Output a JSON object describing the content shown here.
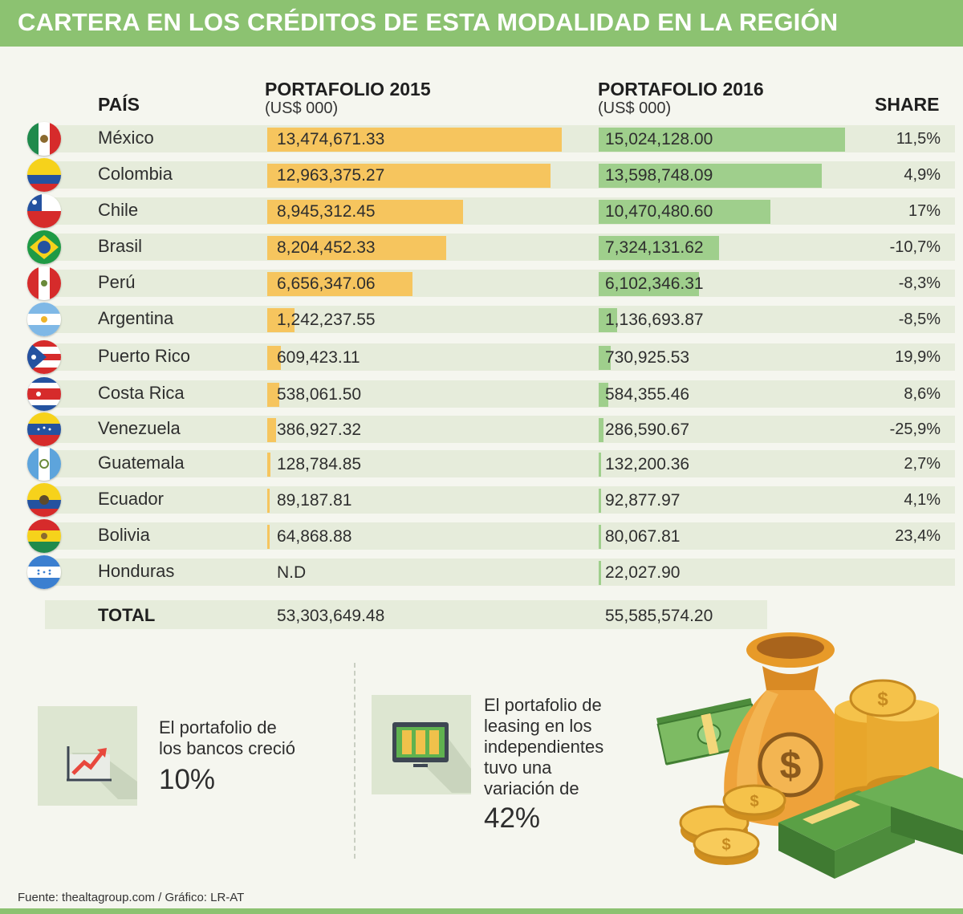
{
  "title": "CARTERA EN LOS CRÉDITOS DE ESTA MODALIDAD EN LA REGIÓN",
  "headers": {
    "pais": "PAÍS",
    "p2015": "PORTAFOLIO 2015",
    "p2015_unit": "(US$ 000)",
    "p2016": "PORTAFOLIO 2016",
    "p2016_unit": "(US$ 000)",
    "share": "SHARE"
  },
  "chart_data": {
    "type": "bar",
    "title": "CARTERA EN LOS CRÉDITOS DE ESTA MODALIDAD EN LA REGIÓN",
    "unit": "US$ 000",
    "categories": [
      "México",
      "Colombia",
      "Chile",
      "Brasil",
      "Perú",
      "Argentina",
      "Puerto Rico",
      "Costa Rica",
      "Venezuela",
      "Guatemala",
      "Ecuador",
      "Bolivia",
      "Honduras"
    ],
    "series": [
      {
        "name": "PORTAFOLIO 2015",
        "values": [
          13474671.33,
          12963375.27,
          8945312.45,
          8204452.33,
          6656347.06,
          1242237.55,
          609423.11,
          538061.5,
          386927.32,
          128784.85,
          89187.81,
          64868.88,
          null
        ],
        "labels": [
          "13,474,671.33",
          "12,963,375.27",
          "8,945,312.45",
          "8,204,452.33",
          "6,656,347.06",
          "1,242,237.55",
          "609,423.11",
          "538,061.50",
          "386,927.32",
          "128,784.85",
          "89,187.81",
          "64,868.88",
          "N.D"
        ]
      },
      {
        "name": "PORTAFOLIO 2016",
        "values": [
          15024128.0,
          13598748.09,
          10470480.6,
          7324131.62,
          6102346.31,
          1136693.87,
          730925.53,
          584355.46,
          286590.67,
          132200.36,
          92877.97,
          80067.81,
          22027.9
        ],
        "labels": [
          "15,024,128.00",
          "13,598,748.09",
          "10,470,480.60",
          "7,324,131.62",
          "6,102,346.31",
          "1,136,693.87",
          "730,925.53",
          "584,355.46",
          "286,590.67",
          "132,200.36",
          "92,877.97",
          "80,067.81",
          "22,027.90"
        ]
      }
    ],
    "share": [
      "11,5%",
      "4,9%",
      "17%",
      "-10,7%",
      "-8,3%",
      "-8,5%",
      "19,9%",
      "8,6%",
      "-25,9%",
      "2,7%",
      "4,1%",
      "23,4%",
      ""
    ],
    "flags": [
      "mexico-flag",
      "colombia-flag",
      "chile-flag",
      "brazil-flag",
      "peru-flag",
      "argentina-flag",
      "puerto-rico-flag",
      "costa-rica-flag",
      "venezuela-flag",
      "guatemala-flag",
      "ecuador-flag",
      "bolivia-flag",
      "honduras-flag"
    ],
    "total": {
      "label": "TOTAL",
      "v2015": "53,303,649.48",
      "v2016": "55,585,574.20"
    }
  },
  "info1": {
    "text": [
      "El portafolio de",
      "los bancos creció"
    ],
    "value": "10%",
    "icon": "growth-chart-icon"
  },
  "info2": {
    "text": [
      "El portafolio de",
      "leasing en los",
      "independientes",
      "tuvo una",
      "variación de"
    ],
    "value": "42%",
    "icon": "money-case-icon"
  },
  "footer": "Fuente: thealtagroup.com / Gráfico: LR-AT",
  "colors": {
    "green": "#8cc271",
    "bar2015": "#f6c55e",
    "bar2016": "#9fcf8c",
    "rowbg": "#e6ecdb"
  }
}
